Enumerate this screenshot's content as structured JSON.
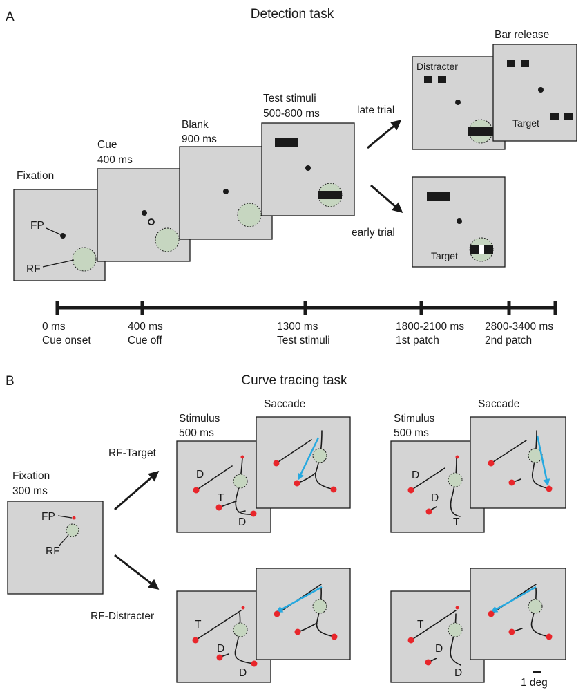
{
  "panel_a": {
    "letter": "A",
    "title": "Detection task",
    "fixation": "Fixation",
    "fp": "FP",
    "rf": "RF",
    "cue": "Cue",
    "cue_time": "400 ms",
    "blank": "Blank",
    "blank_time": "900 ms",
    "test": "Test stimuli",
    "test_time": "500-800 ms",
    "late_trial": "late trial",
    "early_trial": "early trial",
    "bar_release": "Bar release",
    "distracter": "Distracter",
    "target": "Target",
    "target_early": "Target",
    "timeline": [
      {
        "time": "0 ms",
        "event": "Cue onset"
      },
      {
        "time": "400 ms",
        "event": "Cue off"
      },
      {
        "time": "1300 ms",
        "event": "Test stimuli"
      },
      {
        "time": "1800-2100 ms",
        "event": "1st patch"
      },
      {
        "time": "2800-3400 ms",
        "event": "2nd patch"
      }
    ]
  },
  "panel_b": {
    "letter": "B",
    "title": "Curve tracing task",
    "fixation": "Fixation",
    "fixation_time": "300 ms",
    "fp": "FP",
    "rf": "RF",
    "rf_target": "RF-Target",
    "rf_distracter": "RF-Distracter",
    "stimulus": "Stimulus",
    "stimulus_time": "500 ms",
    "saccade": "Saccade",
    "d": "D",
    "t": "T",
    "scale": "1 deg"
  },
  "colors": {
    "panel_bg": "#d4d4d4",
    "rf_fill": "#c6d6c0",
    "fixation_dot": "#e8262b",
    "saccade_arrow": "#26a9e0"
  }
}
